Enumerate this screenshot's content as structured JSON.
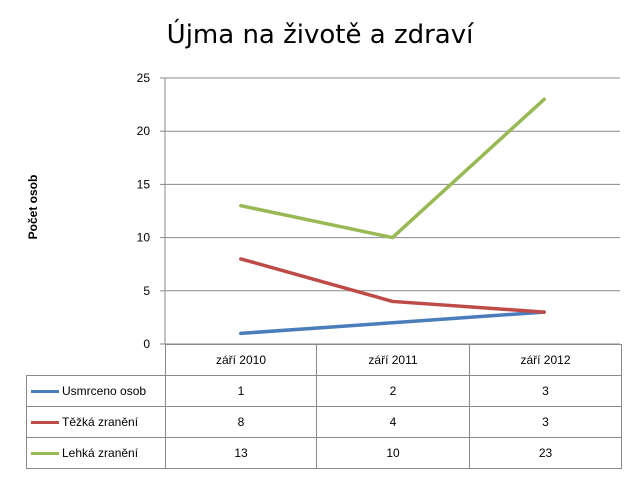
{
  "chart_data": {
    "type": "line",
    "title": "Újma na životě a zdraví",
    "ylabel": "Počet osob",
    "xlabel": "",
    "categories": [
      "září 2010",
      "září 2011",
      "září 2012"
    ],
    "ylim": [
      0,
      25
    ],
    "yticks": [
      "0",
      "5",
      "10",
      "15",
      "20",
      "25"
    ],
    "grid": true,
    "legend": "data table below chart",
    "series": [
      {
        "name": "Usmrceno osob",
        "color": "#4a7ebb",
        "values": [
          1,
          2,
          3
        ]
      },
      {
        "name": "Těžká zranění",
        "color": "#be4b48",
        "values": [
          8,
          4,
          3
        ]
      },
      {
        "name": "Lehká zranění",
        "color": "#98b954",
        "values": [
          13,
          10,
          23
        ]
      }
    ]
  }
}
